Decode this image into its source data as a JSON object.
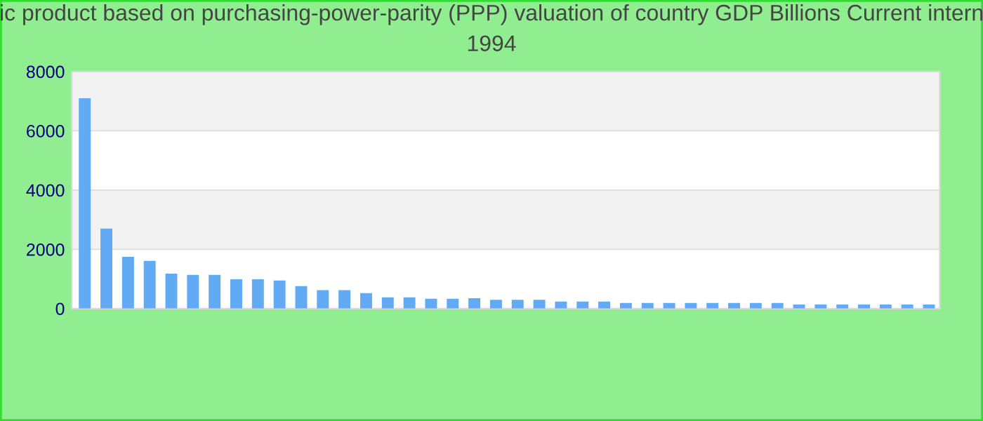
{
  "chart_data": {
    "type": "bar",
    "title": "ic product based on purchasing-power-parity (PPP) valuation of country GDP Billions Current intern\n1994",
    "categories": [
      null,
      null,
      null,
      null,
      null,
      null,
      null,
      null,
      null,
      null,
      null,
      null,
      null,
      null,
      null,
      null,
      null,
      null,
      null,
      null,
      null,
      null,
      null,
      null,
      null,
      null,
      null,
      null,
      null,
      null,
      null,
      null,
      null,
      null,
      null,
      null,
      null,
      null,
      null,
      null
    ],
    "values": [
      7100,
      2700,
      1750,
      1610,
      1180,
      1140,
      1140,
      990,
      990,
      950,
      760,
      620,
      620,
      520,
      380,
      380,
      330,
      330,
      350,
      300,
      300,
      300,
      240,
      240,
      240,
      190,
      190,
      190,
      190,
      190,
      190,
      190,
      190,
      140,
      140,
      140,
      140,
      140,
      140,
      140
    ],
    "color": "#63aaf5",
    "ylim": [
      0,
      8000
    ],
    "yticks": [
      0,
      2000,
      4000,
      6000,
      8000
    ],
    "grid": "y"
  }
}
